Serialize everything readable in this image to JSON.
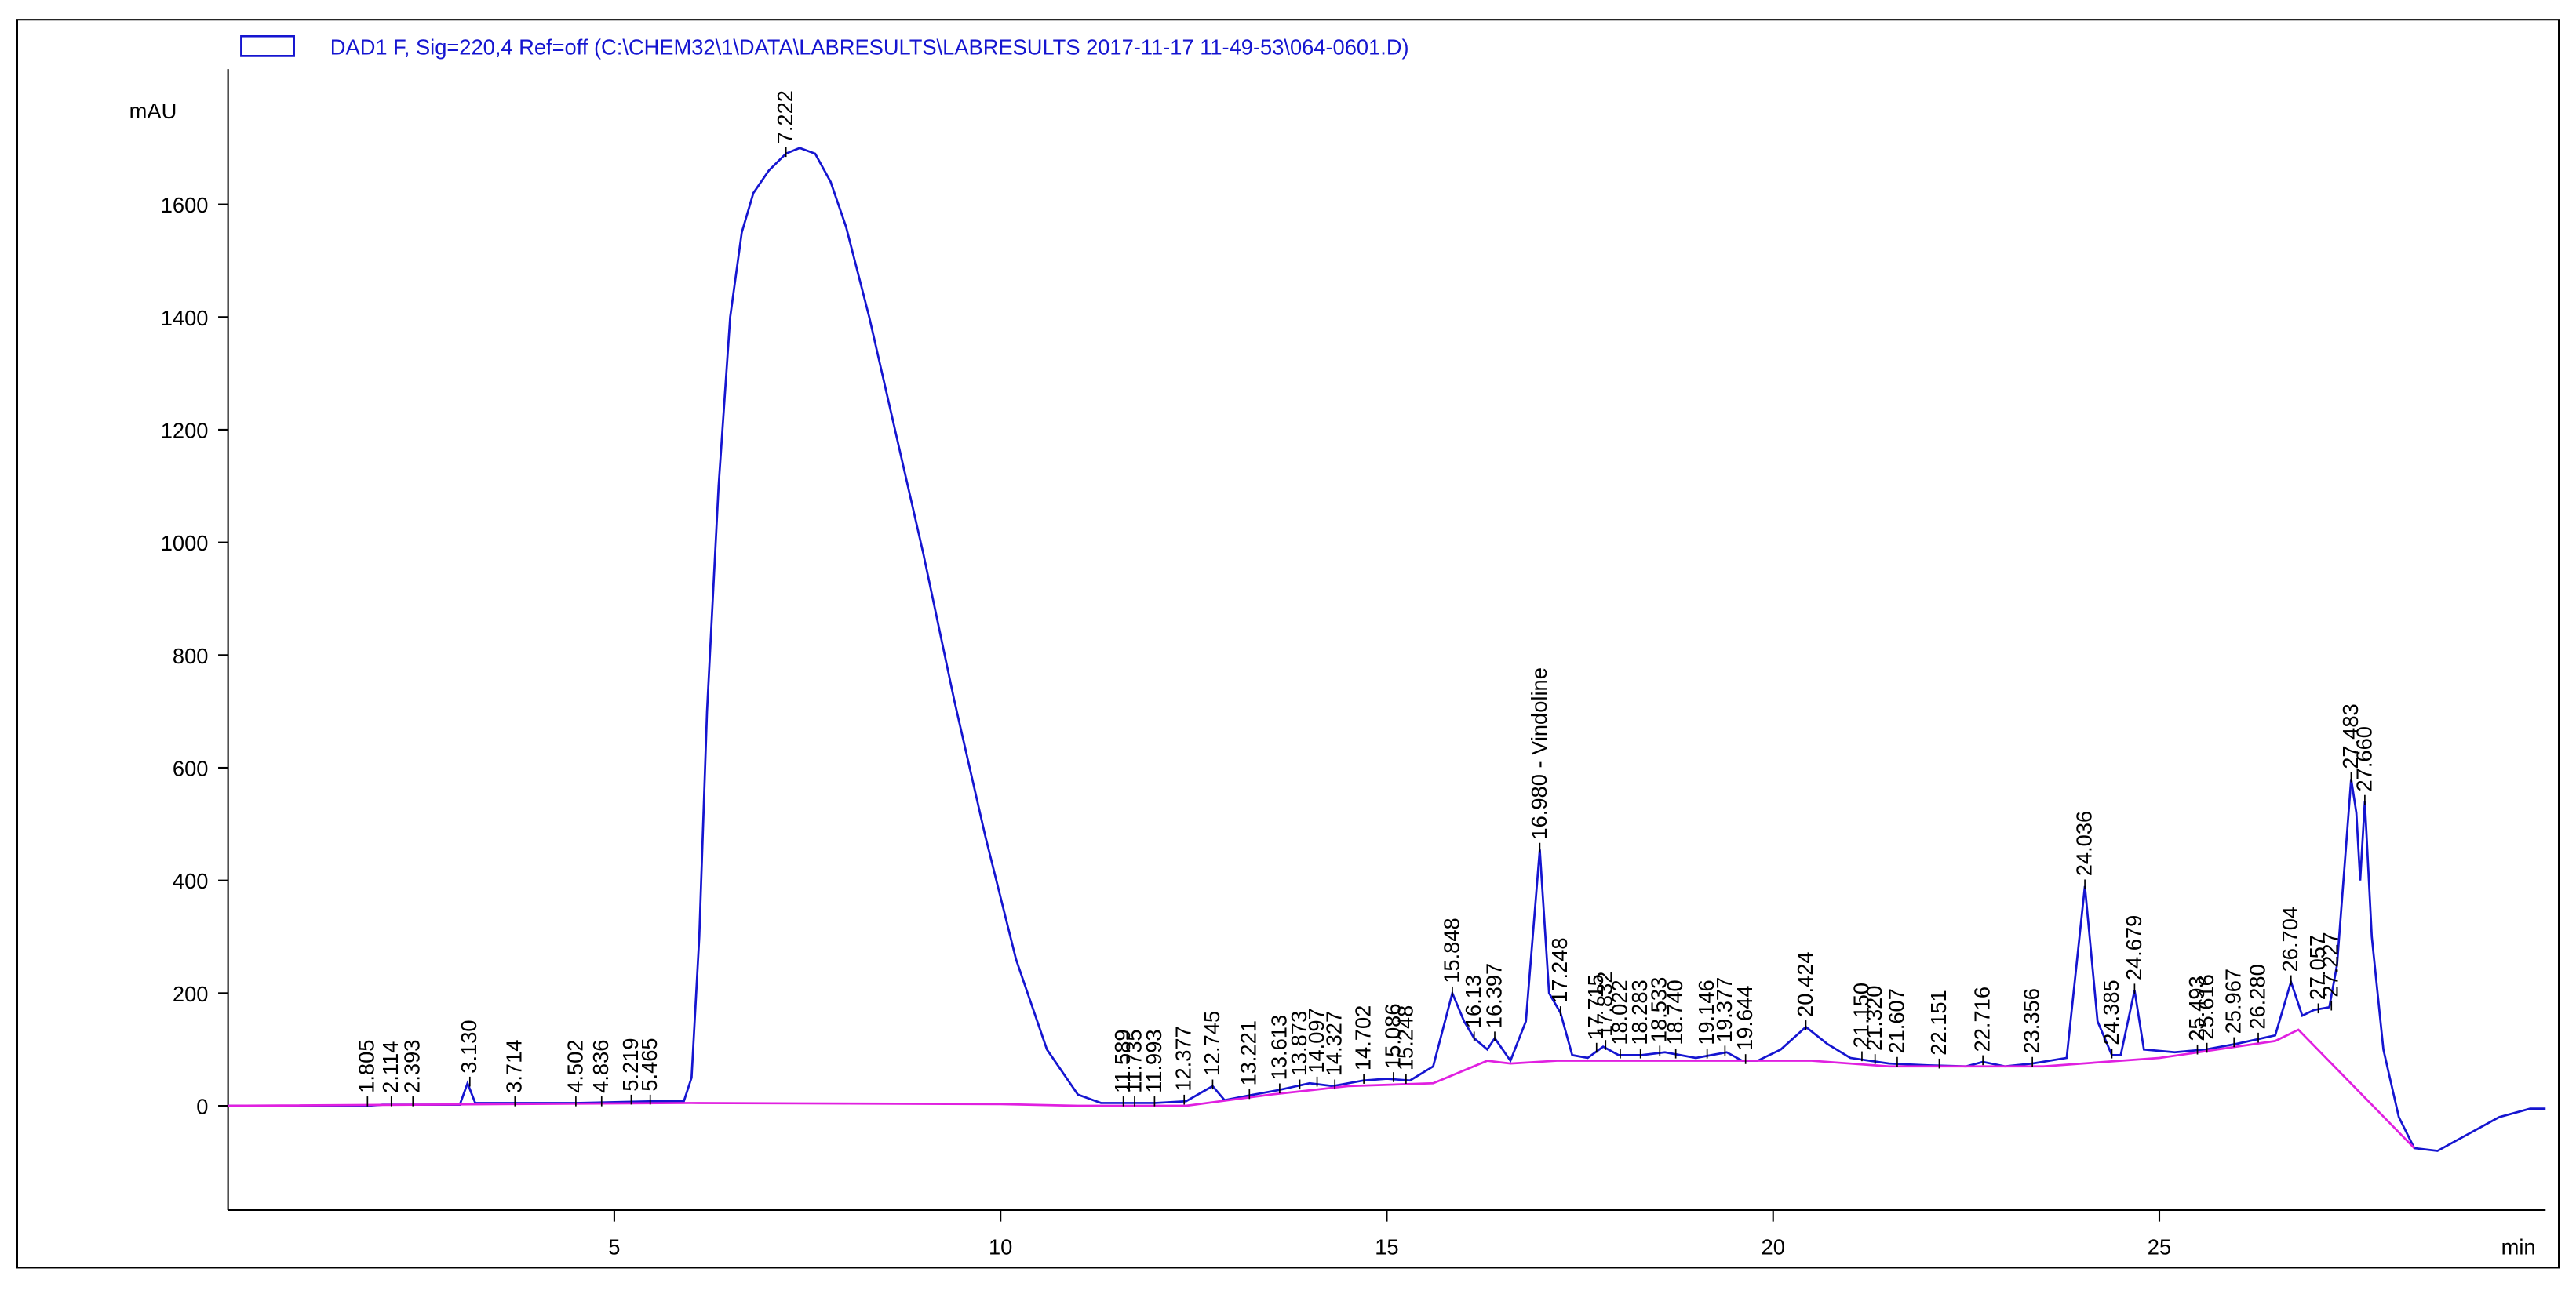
{
  "chart_data": {
    "type": "line",
    "x_label": "min",
    "y_label": "mAU",
    "xlim": [
      0,
      30
    ],
    "ylim": [
      -185,
      1840
    ],
    "xticks": [
      5,
      10,
      15,
      20,
      25
    ],
    "yticks": [
      0,
      200,
      400,
      600,
      800,
      1000,
      1200,
      1400,
      1600
    ],
    "series": [
      {
        "name": "DAD1 F, Sig=220,4 Ref=off (C:\\CHEM32\\1\\DATA\\LABRESULTS\\LABRESULTS 2017-11-17 11-49-53\\064-0601.D)",
        "color": "#1515d0",
        "x": [
          0,
          1.8,
          2.0,
          3.0,
          3.1,
          3.2,
          3.714,
          4.5,
          5.5,
          5.9,
          6.0,
          6.1,
          6.2,
          6.35,
          6.5,
          6.65,
          6.8,
          7.0,
          7.222,
          7.4,
          7.6,
          7.8,
          8.0,
          8.3,
          8.6,
          9.0,
          9.4,
          9.8,
          10.2,
          10.6,
          11.0,
          11.3,
          11.6,
          12.0,
          12.4,
          12.745,
          12.9,
          13.2,
          13.6,
          14.0,
          14.3,
          14.7,
          15.0,
          15.3,
          15.6,
          15.848,
          16.0,
          16.13,
          16.3,
          16.397,
          16.6,
          16.8,
          16.98,
          17.1,
          17.248,
          17.4,
          17.6,
          17.8,
          18.0,
          18.3,
          18.6,
          18.8,
          19.0,
          19.2,
          19.4,
          19.6,
          19.8,
          20.1,
          20.424,
          20.7,
          21.0,
          21.5,
          22.0,
          22.5,
          22.716,
          23.0,
          23.356,
          23.8,
          24.036,
          24.2,
          24.385,
          24.5,
          24.679,
          24.8,
          25.2,
          25.6,
          26.0,
          26.5,
          26.704,
          26.85,
          27.0,
          27.2,
          27.3,
          27.483,
          27.55,
          27.6,
          27.66,
          27.75,
          27.9,
          28.1,
          28.3,
          28.6,
          29.0,
          29.4,
          29.8,
          30
        ],
        "values": [
          0,
          0,
          2,
          2,
          40,
          5,
          5,
          5,
          8,
          8,
          50,
          300,
          700,
          1100,
          1400,
          1550,
          1620,
          1660,
          1690,
          1700,
          1690,
          1640,
          1560,
          1400,
          1220,
          980,
          720,
          480,
          260,
          100,
          20,
          5,
          5,
          5,
          8,
          35,
          10,
          18,
          28,
          40,
          35,
          45,
          48,
          45,
          70,
          200,
          150,
          120,
          100,
          120,
          80,
          150,
          455,
          200,
          165,
          90,
          85,
          105,
          90,
          90,
          95,
          90,
          85,
          90,
          95,
          80,
          80,
          100,
          140,
          110,
          85,
          75,
          72,
          70,
          78,
          70,
          75,
          85,
          390,
          150,
          90,
          90,
          205,
          100,
          95,
          100,
          110,
          125,
          220,
          160,
          170,
          175,
          250,
          580,
          520,
          400,
          540,
          300,
          100,
          -20,
          -75,
          -80,
          -50,
          -20,
          -5,
          -5
        ]
      },
      {
        "color": "#e020e0",
        "x": [
          0,
          6,
          10,
          11,
          12.4,
          13.5,
          14.5,
          15.6,
          16.3,
          16.6,
          17.2,
          20.5,
          21.5,
          23.5,
          25.0,
          26.5,
          26.8,
          28.3
        ],
        "values": [
          0,
          5,
          3,
          0,
          0,
          20,
          35,
          40,
          80,
          75,
          80,
          80,
          70,
          70,
          85,
          115,
          135,
          -75
        ]
      }
    ],
    "annotations": [
      {
        "x": 1.805,
        "y": 5,
        "label": "1.805"
      },
      {
        "x": 2.114,
        "y": 5,
        "label": "2.114"
      },
      {
        "x": 2.393,
        "y": 5,
        "label": "2.393"
      },
      {
        "x": 3.13,
        "y": 40,
        "label": "3.130"
      },
      {
        "x": 3.714,
        "y": 5,
        "label": "3.714"
      },
      {
        "x": 4.502,
        "y": 5,
        "label": "4.502"
      },
      {
        "x": 4.836,
        "y": 5,
        "label": "4.836"
      },
      {
        "x": 5.219,
        "y": 8,
        "label": "5.219"
      },
      {
        "x": 5.465,
        "y": 8,
        "label": "5.465"
      },
      {
        "x": 7.222,
        "y": 1690,
        "label": "7.222"
      },
      {
        "x": 11.589,
        "y": 5,
        "label": "11.589"
      },
      {
        "x": 11.735,
        "y": 5,
        "label": "11.735"
      },
      {
        "x": 11.993,
        "y": 5,
        "label": "11.993"
      },
      {
        "x": 12.377,
        "y": 8,
        "label": "12.377"
      },
      {
        "x": 12.745,
        "y": 35,
        "label": "12.745"
      },
      {
        "x": 13.221,
        "y": 18,
        "label": "13.221"
      },
      {
        "x": 13.613,
        "y": 28,
        "label": "13.613"
      },
      {
        "x": 13.873,
        "y": 35,
        "label": "13.873"
      },
      {
        "x": 14.097,
        "y": 40,
        "label": "14.097"
      },
      {
        "x": 14.327,
        "y": 35,
        "label": "14.327"
      },
      {
        "x": 14.702,
        "y": 45,
        "label": "14.702"
      },
      {
        "x": 15.086,
        "y": 48,
        "label": "15.086"
      },
      {
        "x": 15.248,
        "y": 45,
        "label": "15.248"
      },
      {
        "x": 15.848,
        "y": 200,
        "label": "15.848"
      },
      {
        "x": 16.13,
        "y": 120,
        "label": "16.13"
      },
      {
        "x": 16.397,
        "y": 120,
        "label": "16.397"
      },
      {
        "x": 16.98,
        "y": 455,
        "label": "16.980  -  Vindoline"
      },
      {
        "x": 17.248,
        "y": 165,
        "label": "17.248"
      },
      {
        "x": 17.715,
        "y": 100,
        "label": "17.715"
      },
      {
        "x": 17.832,
        "y": 105,
        "label": "17.832"
      },
      {
        "x": 18.022,
        "y": 90,
        "label": "18.022"
      },
      {
        "x": 18.283,
        "y": 90,
        "label": "18.283"
      },
      {
        "x": 18.533,
        "y": 95,
        "label": "18.533"
      },
      {
        "x": 18.74,
        "y": 90,
        "label": "18.740"
      },
      {
        "x": 19.146,
        "y": 90,
        "label": "19.146"
      },
      {
        "x": 19.377,
        "y": 95,
        "label": "19.377"
      },
      {
        "x": 19.644,
        "y": 80,
        "label": "19.644"
      },
      {
        "x": 20.424,
        "y": 140,
        "label": "20.424"
      },
      {
        "x": 21.15,
        "y": 85,
        "label": "21.150"
      },
      {
        "x": 21.32,
        "y": 80,
        "label": "21.320"
      },
      {
        "x": 21.607,
        "y": 75,
        "label": "21.607"
      },
      {
        "x": 22.151,
        "y": 72,
        "label": "22.151"
      },
      {
        "x": 22.716,
        "y": 78,
        "label": "22.716"
      },
      {
        "x": 23.356,
        "y": 75,
        "label": "23.356"
      },
      {
        "x": 24.036,
        "y": 390,
        "label": "24.036"
      },
      {
        "x": 24.385,
        "y": 90,
        "label": "24.385"
      },
      {
        "x": 24.679,
        "y": 205,
        "label": "24.679"
      },
      {
        "x": 25.493,
        "y": 97,
        "label": "25.493"
      },
      {
        "x": 25.616,
        "y": 100,
        "label": "25.616"
      },
      {
        "x": 25.967,
        "y": 110,
        "label": "25.967"
      },
      {
        "x": 26.28,
        "y": 118,
        "label": "26.280"
      },
      {
        "x": 26.704,
        "y": 220,
        "label": "26.704"
      },
      {
        "x": 27.057,
        "y": 170,
        "label": "27.057"
      },
      {
        "x": 27.227,
        "y": 175,
        "label": "27.227"
      },
      {
        "x": 27.483,
        "y": 580,
        "label": "27.483"
      },
      {
        "x": 27.66,
        "y": 540,
        "label": "27.660"
      }
    ]
  }
}
